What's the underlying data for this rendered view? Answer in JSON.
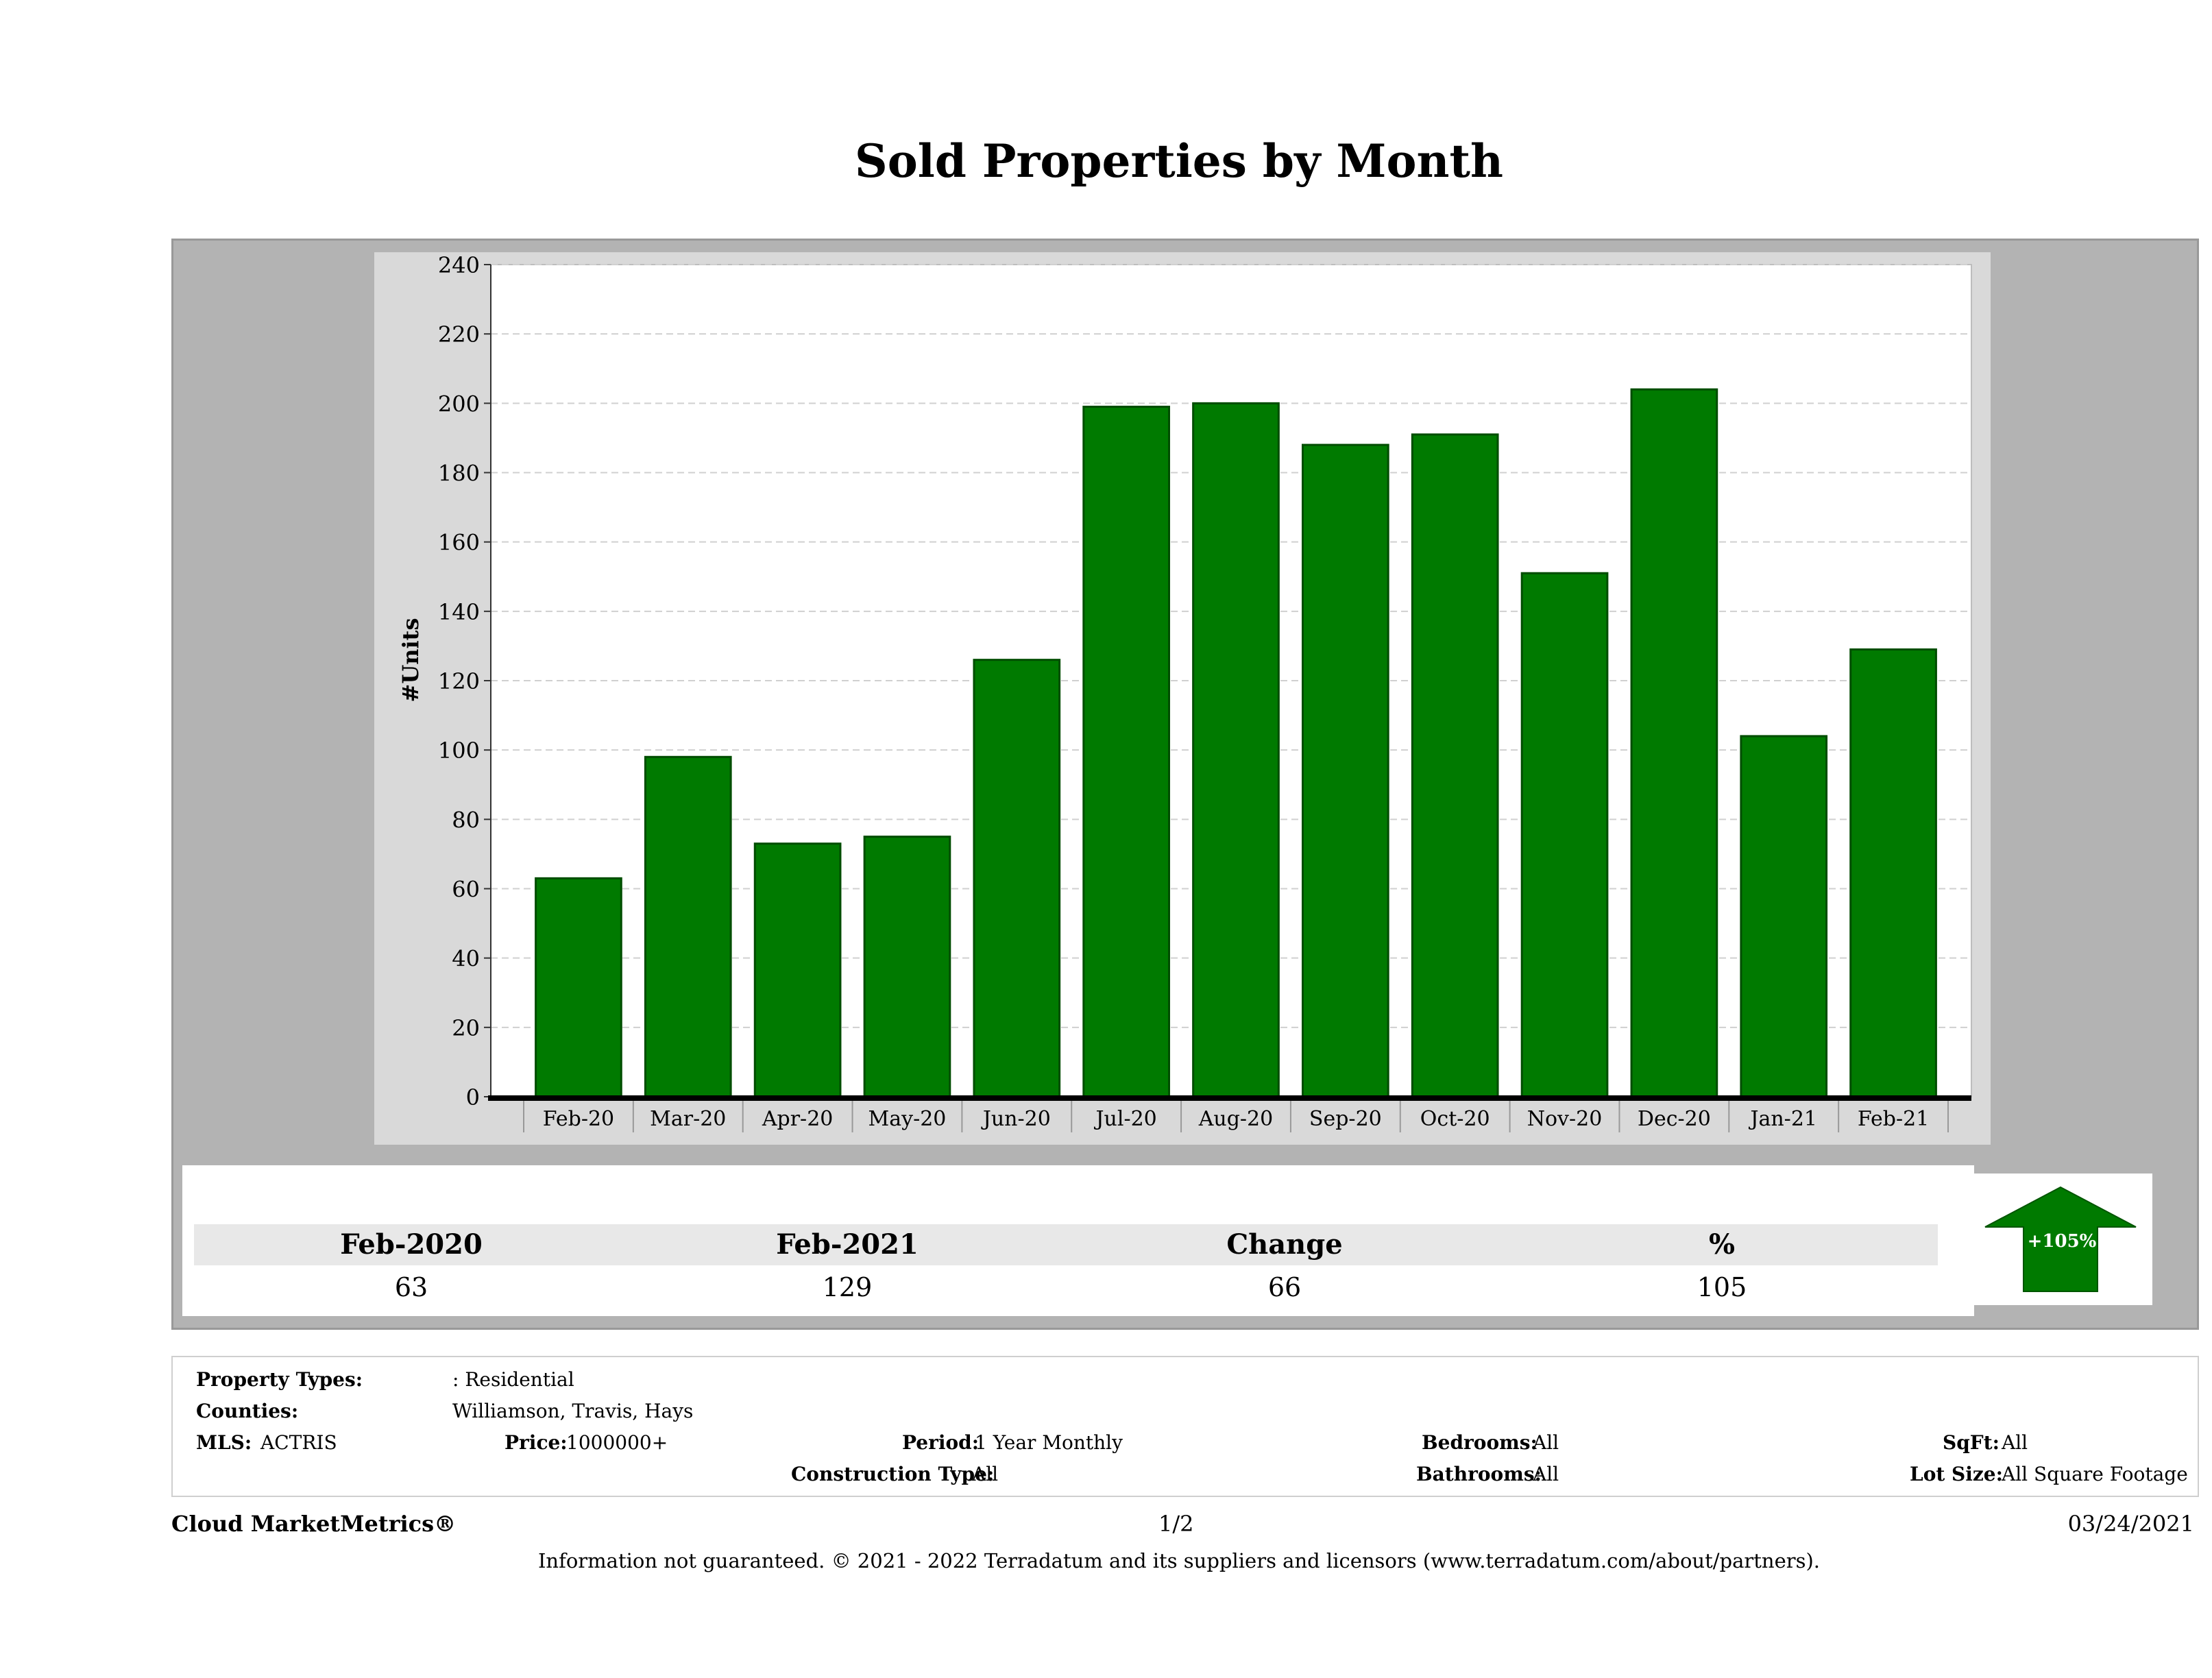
{
  "page": {
    "title": "Sold Properties by Month"
  },
  "chart_data": {
    "type": "bar",
    "title": "Sold Properties by Month",
    "ylabel": "#Units",
    "xlabel": "",
    "categories": [
      "Feb-20",
      "Mar-20",
      "Apr-20",
      "May-20",
      "Jun-20",
      "Jul-20",
      "Aug-20",
      "Sep-20",
      "Oct-20",
      "Nov-20",
      "Dec-20",
      "Jan-21",
      "Feb-21"
    ],
    "values": [
      63,
      98,
      73,
      75,
      126,
      199,
      200,
      188,
      191,
      151,
      204,
      104,
      129
    ],
    "ylim": [
      0,
      240
    ],
    "yticks": [
      0,
      20,
      40,
      60,
      80,
      100,
      120,
      140,
      160,
      180,
      200,
      220,
      240
    ],
    "grid": true,
    "colors": {
      "bar": "#007a00",
      "bar_edge": "#004d00",
      "plot_bg": "#ffffff",
      "frame_bg": "#d9d9d9",
      "panel_bg": "#b3b3b3"
    }
  },
  "summary": {
    "headers": [
      "Feb-2020",
      "Feb-2021",
      "Change",
      "%"
    ],
    "values": [
      "63",
      "129",
      "66",
      "105"
    ],
    "badge": "+105%",
    "badge_color": "#007a00"
  },
  "filters": {
    "property_types_label": "Property Types:",
    "property_types_value": ": Residential",
    "counties_label": "Counties:",
    "counties_value": "Williamson, Travis, Hays",
    "mls_label": "MLS:",
    "mls_value": "ACTRIS",
    "price_label": "Price:",
    "price_value": "1000000+",
    "period_label": "Period:",
    "period_value": "1 Year Monthly",
    "construction_label": "Construction Type:",
    "construction_value": "All",
    "bedrooms_label": "Bedrooms:",
    "bedrooms_value": "All",
    "bathrooms_label": "Bathrooms:",
    "bathrooms_value": "All",
    "sqft_label": "SqFt:",
    "sqft_value": "All",
    "lotsize_label": "Lot Size:",
    "lotsize_value": "All Square Footage"
  },
  "footer": {
    "brand": "Cloud MarketMetrics®",
    "page": "1/2",
    "date": "03/24/2021",
    "disclaimer": "Information not guaranteed. © 2021 - 2022 Terradatum and its suppliers and licensors (www.terradatum.com/about/partners)."
  }
}
